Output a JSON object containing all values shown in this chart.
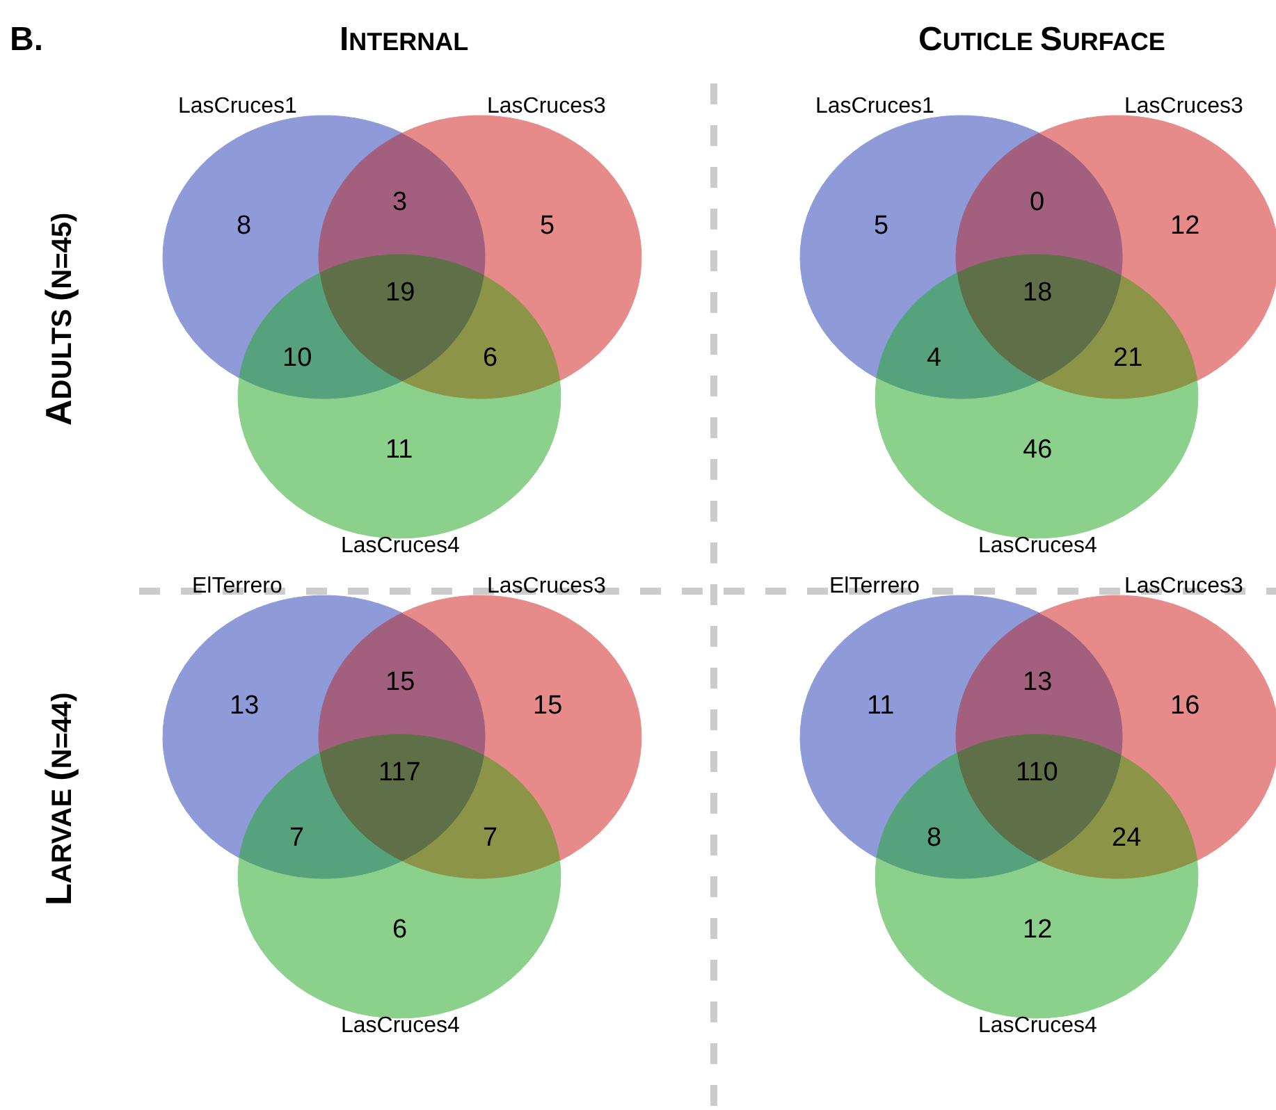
{
  "chart_data": [
    {
      "type": "other",
      "title": "INTERNAL",
      "ylabel": "ADULTS (N=45)",
      "annotations": [
        "B.",
        "LasCruces1",
        "LasCruces3",
        "LasCruces4"
      ],
      "data_labels": true,
      "categories": [
        null,
        null,
        null,
        null,
        null,
        null,
        null
      ],
      "values": [
        8,
        3,
        5,
        19,
        10,
        6,
        11
      ],
      "colors": [
        "#8e9bd8",
        "#a35f7e",
        "#e68a8a",
        "#5f7048",
        "#55a27c",
        "#8c9447",
        "#8bd08b"
      ]
    },
    {
      "type": "other",
      "title": "CUTICLE SURFACE",
      "annotations": [
        "LasCruces1",
        "LasCruces3",
        "LasCruces4"
      ],
      "data_labels": true,
      "categories": [
        null,
        null,
        null,
        null,
        null,
        null,
        null
      ],
      "values": [
        5,
        0,
        12,
        18,
        4,
        21,
        46
      ],
      "colors": [
        "#8e9bd8",
        "#a35f7e",
        "#e68a8a",
        "#5f7048",
        "#55a27c",
        "#8c9447",
        "#8bd08b"
      ]
    },
    {
      "type": "other",
      "ylabel": "LARVAE (N=44)",
      "annotations": [
        "ElTerrero",
        "LasCruces3",
        "LasCruces4"
      ],
      "data_labels": true,
      "categories": [
        null,
        null,
        null,
        null,
        null,
        null,
        null
      ],
      "values": [
        13,
        15,
        15,
        117,
        7,
        7,
        6
      ],
      "colors": [
        "#8e9bd8",
        "#a35f7e",
        "#e68a8a",
        "#5f7048",
        "#55a27c",
        "#8c9447",
        "#8bd08b"
      ]
    },
    {
      "type": "other",
      "annotations": [
        "ElTerrero",
        "LasCruces3",
        "LasCruces4"
      ],
      "data_labels": true,
      "categories": [
        null,
        null,
        null,
        null,
        null,
        null,
        null
      ],
      "values": [
        11,
        13,
        16,
        110,
        8,
        24,
        12
      ],
      "colors": [
        "#8e9bd8",
        "#a35f7e",
        "#e68a8a",
        "#5f7048",
        "#55a27c",
        "#8c9447",
        "#8bd08b"
      ]
    }
  ]
}
